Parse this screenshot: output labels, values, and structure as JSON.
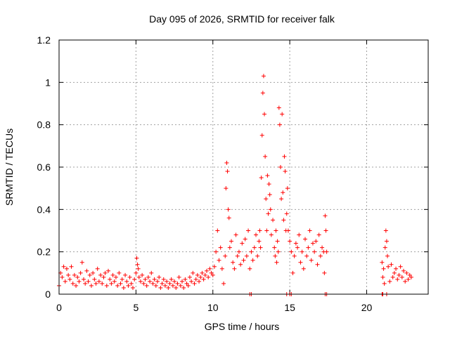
{
  "chart_data": {
    "type": "scatter",
    "title": "Day 095 of 2026, SRMTID for receiver falk",
    "xlabel": "GPS time / hours",
    "ylabel": "SRMTID / TECUs",
    "xlim": [
      0,
      24
    ],
    "ylim": [
      0,
      1.2
    ],
    "x_ticks": [
      0,
      5,
      10,
      15,
      20
    ],
    "x_tick_labels": [
      "0",
      "5",
      "10",
      "15",
      "20"
    ],
    "y_ticks": [
      0,
      0.2,
      0.4,
      0.6,
      0.8,
      1.0,
      1.2
    ],
    "y_tick_labels": [
      "0",
      "0.2",
      "0.4",
      "0.6",
      "0.8",
      "1",
      "1.2"
    ],
    "grid": true,
    "marker": "+",
    "color": "#ff0000",
    "series": [
      {
        "name": "SRMTID",
        "x": [
          0.0,
          0.1,
          0.2,
          0.3,
          0.4,
          0.5,
          0.6,
          0.7,
          0.8,
          0.9,
          1.0,
          1.1,
          1.2,
          1.3,
          1.4,
          1.5,
          1.6,
          1.7,
          1.8,
          1.9,
          2.0,
          2.1,
          2.2,
          2.3,
          2.4,
          2.5,
          2.6,
          2.7,
          2.8,
          2.9,
          3.0,
          3.1,
          3.2,
          3.3,
          3.4,
          3.5,
          3.6,
          3.7,
          3.8,
          3.9,
          4.0,
          4.1,
          4.2,
          4.3,
          4.4,
          4.5,
          4.6,
          4.7,
          4.8,
          4.9,
          5.0,
          5.05,
          5.1,
          5.15,
          5.2,
          5.3,
          5.4,
          5.5,
          5.6,
          5.7,
          5.8,
          5.9,
          6.0,
          6.1,
          6.2,
          6.3,
          6.4,
          6.5,
          6.6,
          6.7,
          6.8,
          6.9,
          7.0,
          7.1,
          7.2,
          7.3,
          7.4,
          7.5,
          7.6,
          7.7,
          7.8,
          7.9,
          8.0,
          8.1,
          8.2,
          8.3,
          8.4,
          8.5,
          8.6,
          8.7,
          8.8,
          8.9,
          9.0,
          9.1,
          9.2,
          9.3,
          9.4,
          9.5,
          9.6,
          9.7,
          9.8,
          9.9,
          10.0,
          10.1,
          10.2,
          10.3,
          10.4,
          10.5,
          10.6,
          10.7,
          10.8,
          10.85,
          10.9,
          10.95,
          11.0,
          11.05,
          11.1,
          11.2,
          11.3,
          11.4,
          11.5,
          11.6,
          11.7,
          11.8,
          11.9,
          12.0,
          12.1,
          12.2,
          12.3,
          12.4,
          12.5,
          12.6,
          12.7,
          12.8,
          12.9,
          13.0,
          13.05,
          13.1,
          13.15,
          13.2,
          13.25,
          13.3,
          13.35,
          13.4,
          13.45,
          13.5,
          13.55,
          13.6,
          13.65,
          13.7,
          13.75,
          13.8,
          13.9,
          14.0,
          14.05,
          14.1,
          14.15,
          14.2,
          14.25,
          14.3,
          14.35,
          14.4,
          14.45,
          14.5,
          14.55,
          14.6,
          14.65,
          14.7,
          14.75,
          14.8,
          14.85,
          14.9,
          15.0,
          15.1,
          15.2,
          15.3,
          15.4,
          15.5,
          15.6,
          15.7,
          15.8,
          15.9,
          16.0,
          16.1,
          16.2,
          16.3,
          16.4,
          16.5,
          16.6,
          16.7,
          16.8,
          16.9,
          17.0,
          17.1,
          17.2,
          17.25,
          17.3,
          17.35,
          17.4,
          21.0,
          21.05,
          21.1,
          21.15,
          21.2,
          21.25,
          21.3,
          21.35,
          21.4,
          21.5,
          21.6,
          21.7,
          21.8,
          21.9,
          22.0,
          22.1,
          22.2,
          22.3,
          22.4,
          22.5,
          22.6,
          22.7,
          22.8,
          22.9,
          12.4,
          12.5,
          14.8,
          15.0,
          15.1,
          17.3,
          17.4,
          21.0,
          21.05,
          21.3
        ],
        "y": [
          0.04,
          0.1,
          0.08,
          0.13,
          0.06,
          0.12,
          0.09,
          0.07,
          0.13,
          0.05,
          0.09,
          0.04,
          0.08,
          0.06,
          0.1,
          0.15,
          0.07,
          0.05,
          0.11,
          0.06,
          0.09,
          0.04,
          0.1,
          0.07,
          0.05,
          0.12,
          0.06,
          0.09,
          0.05,
          0.08,
          0.1,
          0.04,
          0.11,
          0.07,
          0.05,
          0.09,
          0.06,
          0.08,
          0.04,
          0.1,
          0.05,
          0.07,
          0.03,
          0.09,
          0.06,
          0.04,
          0.08,
          0.05,
          0.03,
          0.07,
          0.1,
          0.17,
          0.14,
          0.12,
          0.08,
          0.06,
          0.09,
          0.05,
          0.07,
          0.04,
          0.08,
          0.06,
          0.1,
          0.05,
          0.07,
          0.04,
          0.06,
          0.08,
          0.03,
          0.05,
          0.07,
          0.04,
          0.06,
          0.03,
          0.05,
          0.07,
          0.04,
          0.06,
          0.03,
          0.05,
          0.08,
          0.04,
          0.06,
          0.03,
          0.07,
          0.05,
          0.04,
          0.08,
          0.06,
          0.1,
          0.05,
          0.07,
          0.09,
          0.06,
          0.08,
          0.1,
          0.07,
          0.09,
          0.11,
          0.08,
          0.12,
          0.1,
          0.09,
          0.13,
          0.2,
          0.3,
          0.16,
          0.22,
          0.12,
          0.05,
          0.18,
          0.5,
          0.62,
          0.58,
          0.4,
          0.36,
          0.22,
          0.25,
          0.15,
          0.12,
          0.28,
          0.18,
          0.2,
          0.14,
          0.24,
          0.16,
          0.26,
          0.18,
          0.3,
          0.12,
          0.2,
          0.16,
          0.22,
          0.28,
          0.18,
          0.25,
          0.3,
          0.22,
          0.55,
          0.75,
          0.95,
          1.03,
          0.85,
          0.65,
          0.45,
          0.3,
          0.56,
          0.38,
          0.52,
          0.47,
          0.4,
          0.28,
          0.35,
          0.22,
          0.18,
          0.3,
          0.15,
          0.25,
          0.2,
          0.88,
          0.8,
          0.6,
          0.45,
          0.85,
          0.48,
          0.35,
          0.65,
          0.58,
          0.3,
          0.38,
          0.5,
          0.3,
          0.25,
          0.2,
          0.1,
          0.18,
          0.24,
          0.22,
          0.28,
          0.15,
          0.2,
          0.12,
          0.26,
          0.18,
          0.22,
          0.3,
          0.16,
          0.24,
          0.2,
          0.25,
          0.14,
          0.28,
          0.18,
          0.22,
          0.2,
          0.1,
          0.37,
          0.3,
          0.2,
          0.15,
          0.08,
          0.12,
          0.05,
          0.22,
          0.3,
          0.25,
          0.18,
          0.13,
          0.06,
          0.14,
          0.08,
          0.1,
          0.12,
          0.07,
          0.09,
          0.13,
          0.08,
          0.11,
          0.06,
          0.1,
          0.07,
          0.09,
          0.08,
          0.0,
          0.0,
          0.0,
          0.0,
          0.0,
          0.0,
          0.0,
          0.0,
          0.0,
          0.0
        ]
      }
    ]
  }
}
